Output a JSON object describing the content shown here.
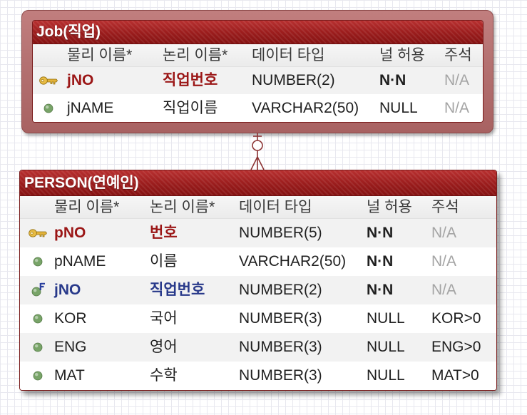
{
  "tables": [
    {
      "title": "Job(직업)",
      "columns": [
        "물리 이름*",
        "논리 이름*",
        "데이터 타입",
        "널 허용",
        "주석"
      ],
      "rows": [
        {
          "icon": "primary-key-icon",
          "physical": "jNO",
          "logical": "직업번호",
          "type": "NUMBER(2)",
          "nullable": "N·N",
          "comment": "N/A"
        },
        {
          "icon": "column-dot-icon",
          "physical": "jNAME",
          "logical": "직업이름",
          "type": "VARCHAR2(50)",
          "nullable": "NULL",
          "comment": "N/A"
        }
      ]
    },
    {
      "title": "PERSON(연예인)",
      "columns": [
        "물리 이름*",
        "논리 이름*",
        "데이터 타입",
        "널 허용",
        "주석"
      ],
      "rows": [
        {
          "icon": "primary-key-icon",
          "physical": "pNO",
          "logical": "번호",
          "type": "NUMBER(5)",
          "nullable": "N·N",
          "comment": "N/A"
        },
        {
          "icon": "column-dot-icon",
          "physical": "pNAME",
          "logical": "이름",
          "type": "VARCHAR2(50)",
          "nullable": "N·N",
          "comment": "N/A"
        },
        {
          "icon": "foreign-key-icon",
          "physical": "jNO",
          "logical": "직업번호",
          "type": "NUMBER(2)",
          "nullable": "N·N",
          "comment": "N/A"
        },
        {
          "icon": "column-dot-icon",
          "physical": "KOR",
          "logical": "국어",
          "type": "NUMBER(3)",
          "nullable": "NULL",
          "comment": "KOR>0"
        },
        {
          "icon": "column-dot-icon",
          "physical": "ENG",
          "logical": "영어",
          "type": "NUMBER(3)",
          "nullable": "NULL",
          "comment": "ENG>0"
        },
        {
          "icon": "column-dot-icon",
          "physical": "MAT",
          "logical": "수학",
          "type": "NUMBER(3)",
          "nullable": "NULL",
          "comment": "MAT>0"
        }
      ]
    }
  ],
  "relationship_icons": {
    "parent_end": "one-bar-icon",
    "child_end": "zero-or-many-crowsfoot-icon"
  },
  "colors": {
    "header": "#9a1c1c",
    "selection_frame": "#b57272",
    "primary_key_text": "#9b1616",
    "foreign_key_text": "#28398a",
    "muted_text": "#a4a4a4",
    "relationship_line": "#8c3434"
  }
}
